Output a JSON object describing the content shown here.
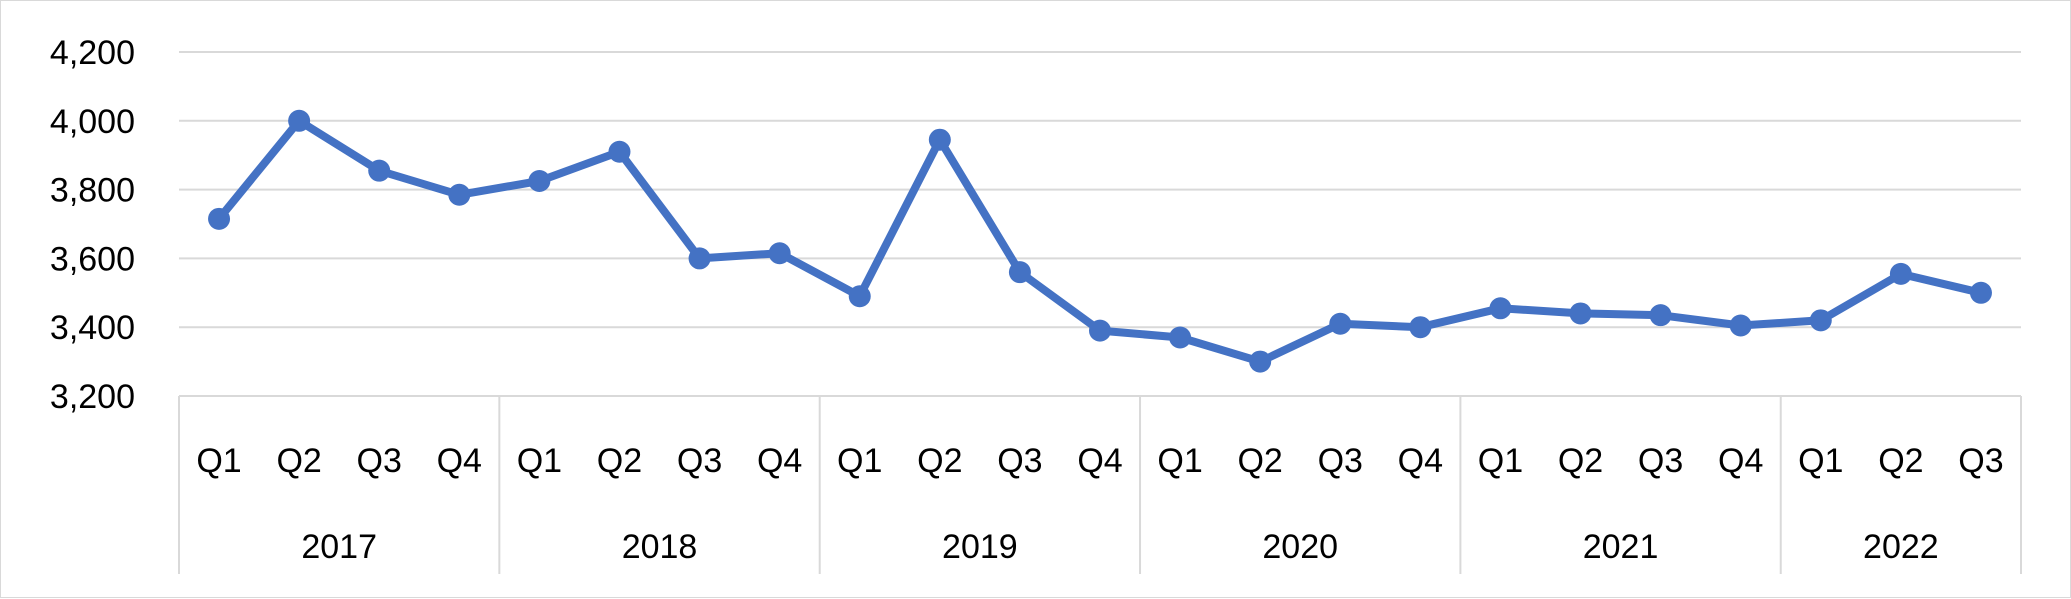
{
  "chart_data": {
    "type": "line",
    "title": "",
    "xlabel": "",
    "ylabel": "",
    "ylim": [
      3200,
      4200
    ],
    "yticks": [
      3200,
      3400,
      3600,
      3800,
      4000,
      4200
    ],
    "ytick_labels": [
      "3,200",
      "3,400",
      "3,600",
      "3,800",
      "4,000",
      "4,200"
    ],
    "grid": true,
    "legend": "none",
    "categories": [
      "Q1",
      "Q2",
      "Q3",
      "Q4",
      "Q1",
      "Q2",
      "Q3",
      "Q4",
      "Q1",
      "Q2",
      "Q3",
      "Q4",
      "Q1",
      "Q2",
      "Q3",
      "Q4",
      "Q1",
      "Q2",
      "Q3",
      "Q4",
      "Q1",
      "Q2",
      "Q3"
    ],
    "groups": [
      {
        "label": "2017",
        "count": 4
      },
      {
        "label": "2018",
        "count": 4
      },
      {
        "label": "2019",
        "count": 4
      },
      {
        "label": "2020",
        "count": 4
      },
      {
        "label": "2021",
        "count": 4
      },
      {
        "label": "2022",
        "count": 3
      }
    ],
    "series": [
      {
        "values": [
          3715,
          4000,
          3855,
          3785,
          3825,
          3910,
          3600,
          3615,
          3490,
          3945,
          3560,
          3390,
          3370,
          3300,
          3410,
          3400,
          3455,
          3440,
          3435,
          3405,
          3420,
          3555,
          3500
        ],
        "color": "#4472c4"
      }
    ]
  }
}
